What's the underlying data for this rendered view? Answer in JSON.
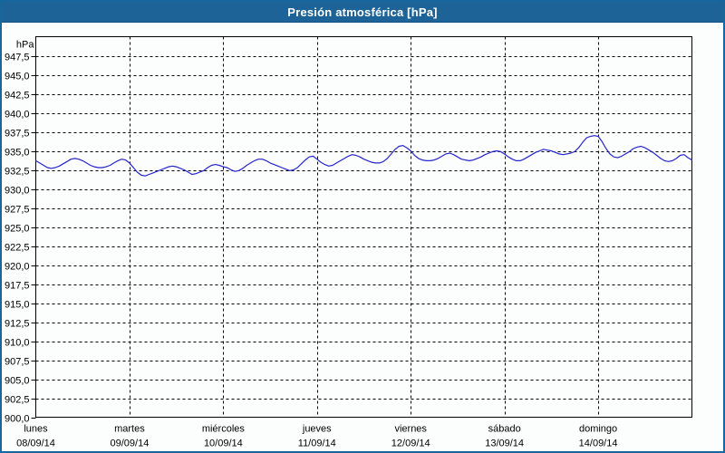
{
  "window": {
    "title": "Presión atmosférica [hPa]"
  },
  "colors": {
    "titlebar_bg": "#1D6398",
    "window_border": "#17679E",
    "background": "#FCFDFD",
    "grid": "#000000",
    "axis": "#000000",
    "line": "#2525CE",
    "title_text": "#FFFFFF"
  },
  "chart_data": {
    "type": "line",
    "title": "Presión atmosférica [hPa]",
    "unit_label": "hPa",
    "ylabel": "hPa",
    "ylim": [
      900,
      950
    ],
    "ytick_step": 2.5,
    "grid": "dashed",
    "legend": "none",
    "ytick_labels": [
      "947,5",
      "945,0",
      "942,5",
      "940,0",
      "937,5",
      "935,0",
      "932,5",
      "930,0",
      "927,5",
      "925,0",
      "922,5",
      "920,0",
      "917,5",
      "915,0",
      "912,5",
      "910,0",
      "907,5",
      "905,0",
      "902,5",
      "900,0"
    ],
    "x_axis": {
      "days": [
        {
          "name": "lunes",
          "date": "08/09/14"
        },
        {
          "name": "martes",
          "date": "09/09/14"
        },
        {
          "name": "miércoles",
          "date": "10/09/14"
        },
        {
          "name": "jueves",
          "date": "11/09/14"
        },
        {
          "name": "viernes",
          "date": "12/09/14"
        },
        {
          "name": "sábado",
          "date": "13/09/14"
        },
        {
          "name": "domingo",
          "date": "14/09/14"
        }
      ]
    },
    "series": [
      {
        "name": "Presión atmosférica",
        "color": "#2525CE",
        "x_unit": "hours_from_monday_00",
        "points": [
          [
            0,
            933.7
          ],
          [
            1,
            933.4
          ],
          [
            2,
            933.1
          ],
          [
            3,
            932.8
          ],
          [
            4,
            932.7
          ],
          [
            5,
            932.8
          ],
          [
            6,
            933.0
          ],
          [
            7,
            933.3
          ],
          [
            8,
            933.6
          ],
          [
            9,
            933.9
          ],
          [
            10,
            934.0
          ],
          [
            11,
            933.9
          ],
          [
            12,
            933.7
          ],
          [
            13,
            933.4
          ],
          [
            14,
            933.1
          ],
          [
            15,
            932.9
          ],
          [
            16,
            932.8
          ],
          [
            17,
            932.8
          ],
          [
            18,
            932.9
          ],
          [
            19,
            933.1
          ],
          [
            20,
            933.4
          ],
          [
            21,
            933.7
          ],
          [
            22,
            933.9
          ],
          [
            23,
            933.8
          ],
          [
            24,
            933.4
          ],
          [
            25,
            932.8
          ],
          [
            26,
            932.2
          ],
          [
            27,
            931.8
          ],
          [
            28,
            931.7
          ],
          [
            29,
            931.9
          ],
          [
            30,
            932.1
          ],
          [
            31,
            932.3
          ],
          [
            32,
            932.5
          ],
          [
            33,
            932.7
          ],
          [
            34,
            932.9
          ],
          [
            35,
            933.0
          ],
          [
            36,
            932.9
          ],
          [
            37,
            932.7
          ],
          [
            38,
            932.5
          ],
          [
            39,
            932.2
          ],
          [
            40,
            931.9
          ],
          [
            41,
            932.0
          ],
          [
            42,
            932.2
          ],
          [
            43,
            932.4
          ],
          [
            44,
            932.8
          ],
          [
            45,
            933.1
          ],
          [
            46,
            933.2
          ],
          [
            47,
            933.1
          ],
          [
            48,
            932.9
          ],
          [
            49,
            932.8
          ],
          [
            50,
            932.5
          ],
          [
            51,
            932.3
          ],
          [
            52,
            932.4
          ],
          [
            53,
            932.7
          ],
          [
            54,
            933.1
          ],
          [
            55,
            933.4
          ],
          [
            56,
            933.7
          ],
          [
            57,
            933.9
          ],
          [
            58,
            933.9
          ],
          [
            59,
            933.7
          ],
          [
            60,
            933.4
          ],
          [
            61,
            933.2
          ],
          [
            62,
            933.0
          ],
          [
            63,
            932.8
          ],
          [
            64,
            932.6
          ],
          [
            65,
            932.4
          ],
          [
            66,
            932.5
          ],
          [
            67,
            932.8
          ],
          [
            68,
            933.3
          ],
          [
            69,
            933.8
          ],
          [
            70,
            934.2
          ],
          [
            71,
            934.3
          ],
          [
            72,
            933.9
          ],
          [
            73,
            933.5
          ],
          [
            74,
            933.2
          ],
          [
            75,
            933.0
          ],
          [
            76,
            933.1
          ],
          [
            77,
            933.4
          ],
          [
            78,
            933.7
          ],
          [
            79,
            934.0
          ],
          [
            80,
            934.3
          ],
          [
            81,
            934.5
          ],
          [
            82,
            934.4
          ],
          [
            83,
            934.2
          ],
          [
            84,
            933.9
          ],
          [
            85,
            933.7
          ],
          [
            86,
            933.5
          ],
          [
            87,
            933.4
          ],
          [
            88,
            933.4
          ],
          [
            89,
            933.6
          ],
          [
            90,
            934.0
          ],
          [
            91,
            934.6
          ],
          [
            92,
            935.2
          ],
          [
            93,
            935.6
          ],
          [
            94,
            935.7
          ],
          [
            95,
            935.4
          ],
          [
            96,
            935.0
          ],
          [
            97,
            934.4
          ],
          [
            98,
            934.0
          ],
          [
            99,
            933.8
          ],
          [
            100,
            933.7
          ],
          [
            101,
            933.7
          ],
          [
            102,
            933.8
          ],
          [
            103,
            934.0
          ],
          [
            104,
            934.3
          ],
          [
            105,
            934.6
          ],
          [
            106,
            934.7
          ],
          [
            107,
            934.5
          ],
          [
            108,
            934.2
          ],
          [
            109,
            933.9
          ],
          [
            110,
            933.8
          ],
          [
            111,
            933.7
          ],
          [
            112,
            933.8
          ],
          [
            113,
            934.0
          ],
          [
            114,
            934.2
          ],
          [
            115,
            934.5
          ],
          [
            116,
            934.7
          ],
          [
            117,
            934.9
          ],
          [
            118,
            935.0
          ],
          [
            119,
            934.9
          ],
          [
            120,
            934.6
          ],
          [
            121,
            934.2
          ],
          [
            122,
            933.9
          ],
          [
            123,
            933.7
          ],
          [
            124,
            933.7
          ],
          [
            125,
            933.9
          ],
          [
            126,
            934.2
          ],
          [
            127,
            934.5
          ],
          [
            128,
            934.8
          ],
          [
            129,
            935.0
          ],
          [
            130,
            935.2
          ],
          [
            131,
            935.1
          ],
          [
            132,
            935.0
          ],
          [
            133,
            934.8
          ],
          [
            134,
            934.6
          ],
          [
            135,
            934.5
          ],
          [
            136,
            934.6
          ],
          [
            137,
            934.7
          ],
          [
            138,
            934.9
          ],
          [
            139,
            935.4
          ],
          [
            140,
            936.1
          ],
          [
            141,
            936.7
          ],
          [
            142,
            936.9
          ],
          [
            143,
            937.0
          ],
          [
            144,
            936.9
          ],
          [
            145,
            936.2
          ],
          [
            146,
            935.3
          ],
          [
            147,
            934.6
          ],
          [
            148,
            934.2
          ],
          [
            149,
            934.1
          ],
          [
            150,
            934.3
          ],
          [
            151,
            934.6
          ],
          [
            152,
            934.9
          ],
          [
            153,
            935.3
          ],
          [
            154,
            935.5
          ],
          [
            155,
            935.6
          ],
          [
            156,
            935.4
          ],
          [
            157,
            935.1
          ],
          [
            158,
            934.8
          ],
          [
            159,
            934.4
          ],
          [
            160,
            934.0
          ],
          [
            161,
            933.7
          ],
          [
            162,
            933.6
          ],
          [
            163,
            933.7
          ],
          [
            164,
            934.0
          ],
          [
            165,
            934.4
          ],
          [
            166,
            934.5
          ],
          [
            167,
            934.1
          ],
          [
            168,
            933.8
          ]
        ]
      }
    ]
  }
}
